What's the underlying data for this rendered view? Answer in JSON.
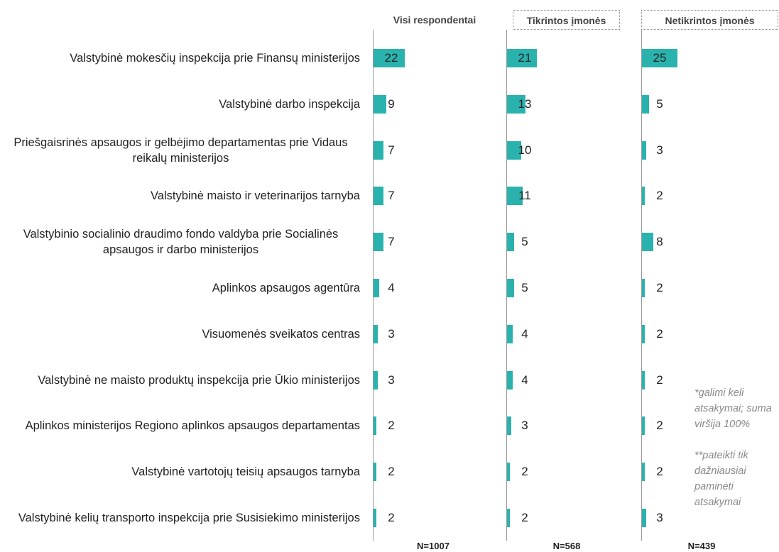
{
  "chart_data": {
    "type": "bar",
    "orientation": "horizontal",
    "categories": [
      "Valstybinė mokesčių inspekcija prie Finansų ministerijos",
      "Valstybinė darbo inspekcija",
      "Priešgaisrinės apsaugos ir gelbėjimo departamentas prie Vidaus reikalų ministerijos",
      "Valstybinė maisto ir veterinarijos tarnyba",
      "Valstybinio socialinio draudimo fondo valdyba prie Socialinės apsaugos ir darbo ministerijos",
      "Aplinkos apsaugos agentūra",
      "Visuomenės sveikatos centras",
      "Valstybinė ne maisto produktų inspekcija prie Ūkio ministerijos",
      "Aplinkos ministerijos Regiono aplinkos apsaugos departamentas",
      "Valstybinė vartotojų teisių apsaugos tarnyba",
      "Valstybinė kelių transporto inspekcija prie Susisiekimo ministerijos"
    ],
    "series": [
      {
        "name": "Visi respondentai",
        "color": "#2ab3ae",
        "sample": "N=1007",
        "values": [
          22,
          9,
          7,
          7,
          7,
          4,
          3,
          3,
          2,
          2,
          2
        ]
      },
      {
        "name": "Tikrintos įmonės",
        "color": "#2ab3ae",
        "sample": "N=568",
        "values": [
          21,
          13,
          10,
          11,
          5,
          5,
          4,
          4,
          3,
          2,
          2
        ]
      },
      {
        "name": "Netikrintos įmonės",
        "color": "#2ab3ae",
        "sample": "N=439",
        "values": [
          25,
          5,
          3,
          2,
          8,
          2,
          2,
          2,
          2,
          2,
          3
        ]
      }
    ],
    "notes": [
      "*galimi keli atsakymai; suma viršija 100%",
      "**pateikti tik dažniausiai paminėti atsakymai"
    ]
  }
}
